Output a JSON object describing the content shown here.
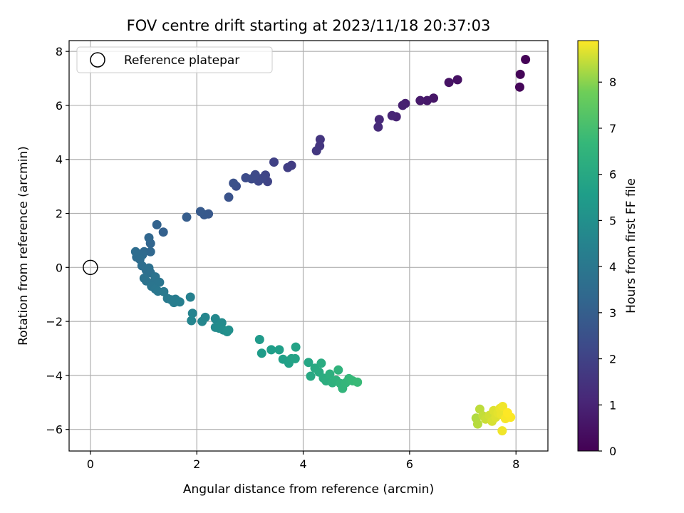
{
  "chart_data": {
    "type": "scatter",
    "title": "FOV centre drift starting at 2023/11/18 20:37:03",
    "xlabel": "Angular distance from reference (arcmin)",
    "ylabel": "Rotation from reference (arcmin)",
    "xlim": [
      -0.4,
      8.6
    ],
    "ylim": [
      -6.8,
      8.4
    ],
    "xticks": [
      0,
      2,
      4,
      6,
      8
    ],
    "yticks": [
      -6,
      -4,
      -2,
      0,
      2,
      4,
      6,
      8
    ],
    "grid": true,
    "legend": {
      "position": "top-left",
      "entries": [
        "Reference platepar"
      ]
    },
    "reference_point": {
      "x": 0,
      "y": 0
    },
    "colorbar": {
      "label": "Hours from first FF file",
      "range": [
        0,
        8.9
      ],
      "ticks": [
        0,
        1,
        2,
        3,
        4,
        5,
        6,
        7,
        8
      ],
      "colormap": "viridis"
    },
    "points": [
      [
        8.18,
        7.7,
        0.05
      ],
      [
        8.08,
        7.15,
        0.1
      ],
      [
        8.07,
        6.68,
        0.15
      ],
      [
        6.9,
        6.95,
        0.45
      ],
      [
        6.74,
        6.85,
        0.5
      ],
      [
        6.45,
        6.27,
        0.6
      ],
      [
        6.33,
        6.18,
        0.65
      ],
      [
        6.2,
        6.18,
        0.7
      ],
      [
        5.92,
        6.07,
        0.85
      ],
      [
        5.87,
        6.0,
        0.9
      ],
      [
        5.75,
        5.58,
        1.0
      ],
      [
        5.67,
        5.62,
        1.05
      ],
      [
        5.43,
        5.48,
        1.15
      ],
      [
        5.41,
        5.2,
        1.2
      ],
      [
        4.32,
        4.74,
        1.55
      ],
      [
        4.31,
        4.5,
        1.6
      ],
      [
        4.25,
        4.32,
        1.65
      ],
      [
        3.78,
        3.78,
        1.8
      ],
      [
        3.71,
        3.7,
        1.85
      ],
      [
        3.45,
        3.9,
        1.95
      ],
      [
        3.33,
        3.18,
        2.05
      ],
      [
        3.29,
        3.42,
        2.1
      ],
      [
        3.23,
        3.3,
        2.15
      ],
      [
        3.16,
        3.2,
        2.2
      ],
      [
        3.1,
        3.43,
        2.25
      ],
      [
        3.03,
        3.28,
        2.3
      ],
      [
        2.92,
        3.32,
        2.35
      ],
      [
        2.74,
        3.01,
        2.45
      ],
      [
        2.69,
        3.12,
        2.5
      ],
      [
        2.6,
        2.6,
        2.6
      ],
      [
        2.22,
        1.98,
        2.75
      ],
      [
        2.14,
        1.95,
        2.8
      ],
      [
        2.07,
        2.07,
        2.85
      ],
      [
        1.81,
        1.86,
        2.95
      ],
      [
        1.37,
        1.31,
        3.1
      ],
      [
        1.25,
        1.58,
        3.15
      ],
      [
        1.13,
        0.89,
        3.25
      ],
      [
        1.1,
        1.1,
        3.3
      ],
      [
        1.13,
        0.58,
        3.35
      ],
      [
        1.01,
        0.58,
        3.4
      ],
      [
        0.98,
        0.47,
        3.45
      ],
      [
        0.87,
        0.38,
        3.5
      ],
      [
        0.85,
        0.58,
        3.55
      ],
      [
        0.93,
        0.3,
        3.55
      ],
      [
        0.97,
        0.06,
        3.6
      ],
      [
        1.05,
        -0.1,
        3.65
      ],
      [
        1.1,
        -0.02,
        3.7
      ],
      [
        1.13,
        -0.2,
        3.7
      ],
      [
        1.01,
        -0.4,
        3.75
      ],
      [
        1.05,
        -0.5,
        3.8
      ],
      [
        1.22,
        -0.35,
        3.8
      ],
      [
        1.18,
        -0.55,
        3.85
      ],
      [
        1.3,
        -0.55,
        3.9
      ],
      [
        1.15,
        -0.7,
        3.9
      ],
      [
        1.22,
        -0.8,
        3.95
      ],
      [
        1.27,
        -0.88,
        4.0
      ],
      [
        1.38,
        -0.9,
        4.05
      ],
      [
        1.45,
        -1.15,
        4.1
      ],
      [
        1.52,
        -1.2,
        4.15
      ],
      [
        1.6,
        -1.18,
        4.2
      ],
      [
        1.57,
        -1.3,
        4.25
      ],
      [
        1.68,
        -1.28,
        4.3
      ],
      [
        1.88,
        -1.1,
        4.35
      ],
      [
        1.92,
        -1.7,
        4.5
      ],
      [
        1.9,
        -1.97,
        4.55
      ],
      [
        2.1,
        -2.0,
        4.6
      ],
      [
        2.16,
        -1.85,
        4.6
      ],
      [
        2.35,
        -1.9,
        4.7
      ],
      [
        2.35,
        -2.22,
        4.75
      ],
      [
        2.47,
        -2.05,
        4.8
      ],
      [
        2.42,
        -2.25,
        4.85
      ],
      [
        2.5,
        -2.32,
        4.9
      ],
      [
        2.57,
        -2.38,
        4.95
      ],
      [
        2.6,
        -2.32,
        5.0
      ],
      [
        3.18,
        -2.67,
        5.4
      ],
      [
        3.22,
        -3.18,
        5.5
      ],
      [
        3.4,
        -3.05,
        5.55
      ],
      [
        3.55,
        -3.05,
        5.6
      ],
      [
        3.62,
        -3.4,
        5.65
      ],
      [
        3.73,
        -3.55,
        5.7
      ],
      [
        3.78,
        -3.38,
        5.75
      ],
      [
        3.85,
        -3.38,
        5.8
      ],
      [
        3.86,
        -2.95,
        5.8
      ],
      [
        4.1,
        -3.52,
        5.9
      ],
      [
        4.14,
        -4.03,
        6.0
      ],
      [
        4.22,
        -3.73,
        6.05
      ],
      [
        4.3,
        -3.88,
        6.1
      ],
      [
        4.34,
        -3.55,
        6.15
      ],
      [
        4.38,
        -4.1,
        6.2
      ],
      [
        4.43,
        -4.2,
        6.25
      ],
      [
        4.5,
        -3.95,
        6.3
      ],
      [
        4.55,
        -4.27,
        6.35
      ],
      [
        4.62,
        -4.18,
        6.4
      ],
      [
        4.66,
        -3.8,
        6.45
      ],
      [
        4.7,
        -4.3,
        6.5
      ],
      [
        4.74,
        -4.48,
        6.55
      ],
      [
        4.8,
        -4.27,
        6.6
      ],
      [
        4.86,
        -4.12,
        6.65
      ],
      [
        4.93,
        -4.2,
        6.7
      ],
      [
        5.02,
        -4.25,
        6.75
      ],
      [
        7.25,
        -5.58,
        8.3
      ],
      [
        7.28,
        -5.8,
        8.35
      ],
      [
        7.32,
        -5.25,
        8.4
      ],
      [
        7.38,
        -5.5,
        8.45
      ],
      [
        7.43,
        -5.62,
        8.5
      ],
      [
        7.5,
        -5.48,
        8.55
      ],
      [
        7.55,
        -5.7,
        8.6
      ],
      [
        7.58,
        -5.3,
        8.65
      ],
      [
        7.62,
        -5.55,
        8.65
      ],
      [
        7.66,
        -5.4,
        8.7
      ],
      [
        7.7,
        -5.22,
        8.75
      ],
      [
        7.72,
        -5.45,
        8.75
      ],
      [
        7.75,
        -5.15,
        8.8
      ],
      [
        7.74,
        -6.05,
        8.8
      ],
      [
        7.8,
        -5.6,
        8.85
      ],
      [
        7.9,
        -5.55,
        8.88
      ],
      [
        7.84,
        -5.38,
        8.9
      ]
    ]
  }
}
